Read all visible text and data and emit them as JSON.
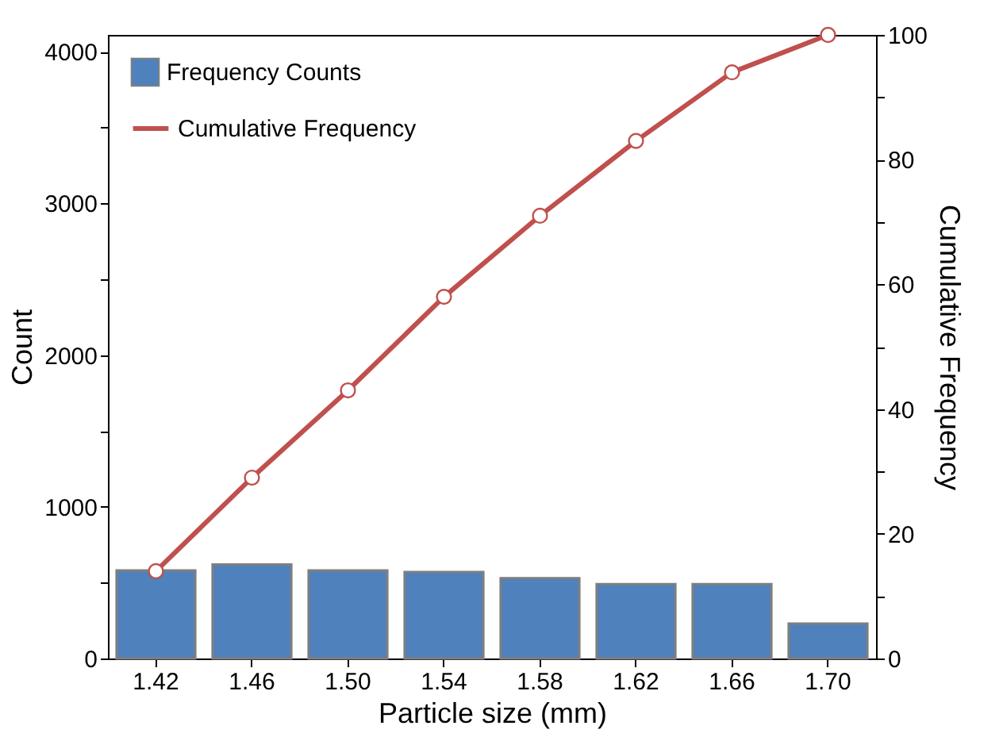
{
  "chart_data": {
    "type": "bar",
    "xlabel": "Particle size (mm)",
    "ylabel": "Count",
    "y2label": "Cumulative Frequency",
    "categories": [
      "1.42",
      "1.46",
      "1.50",
      "1.54",
      "1.58",
      "1.62",
      "1.66",
      "1.70"
    ],
    "series": [
      {
        "name": "Frequency Counts",
        "color": "#4f81bd",
        "values": [
          580,
          620,
          580,
          570,
          530,
          490,
          490,
          230
        ]
      },
      {
        "name": "Cumulative Frequency",
        "type": "line",
        "axis": "y2",
        "color": "#c0504d",
        "marker": "circle",
        "line_style": "solid",
        "values": [
          14,
          29,
          43,
          58,
          71,
          83,
          94,
          100
        ]
      }
    ],
    "ylim": [
      0,
      4110
    ],
    "yticks": [
      0,
      {
        "value": 500,
        "label": null
      },
      1000,
      {
        "value": 1500,
        "label": null
      },
      2000,
      {
        "value": 2500,
        "label": null
      },
      3000,
      {
        "value": 3500,
        "label": null
      },
      4000
    ],
    "y2lim": [
      0,
      100
    ],
    "y2ticks": [
      0,
      {
        "value": 10,
        "label": null
      },
      20,
      {
        "value": 30,
        "label": null
      },
      40,
      {
        "value": 50,
        "label": null
      },
      60,
      {
        "value": 70,
        "label": null
      },
      80,
      {
        "value": 90,
        "label": null
      },
      100
    ],
    "grid": false,
    "legend": "top left"
  }
}
